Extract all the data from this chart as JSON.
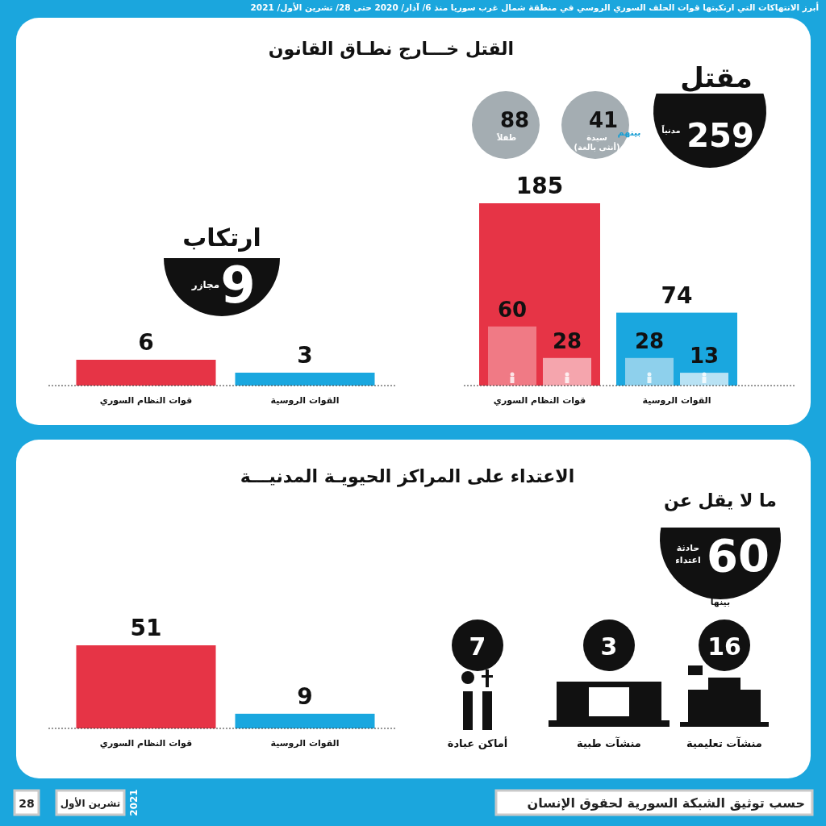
{
  "chart_data": [
    {
      "type": "other",
      "title": "أبرز الانتهاكات التي ارتكبتها قوات الحلف السوري الروسي في منطقة شمال غرب سوريا منذ 6/ آذار/ 2020 حتى 28/ تشرين الأول/ 2021",
      "annotations": [
        "حسب توثيق الشبكة السورية لحقوق الإنسان",
        "28",
        "تشرين الأول",
        "2021"
      ]
    },
    {
      "type": "bar",
      "title": "القتل خـــارج نطـاق القانون",
      "categories": [
        "قوات النظام السوري",
        "القوات الروسية"
      ],
      "data_labels": true,
      "series": [
        {
          "colors": [
            "#e63446",
            "#1aa7df"
          ],
          "values": [
            185,
            74
          ]
        },
        {
          "colors": [
            "#f07a85",
            "#8ed0ec"
          ],
          "values": [
            60,
            28
          ]
        },
        {
          "colors": [
            "#f5a5ad",
            "#b8e2f4"
          ],
          "values": [
            28,
            13
          ]
        }
      ],
      "annotations": [
        "مقتل",
        "259",
        "مدنياً",
        "بينهم",
        "41",
        "سيدة",
        "(أنثى بالغة)",
        "88",
        "طفلاً"
      ]
    },
    {
      "type": "bar",
      "categories": [
        "قوات النظام السوري",
        "القوات الروسية"
      ],
      "data_labels": true,
      "series": [
        {
          "colors": [
            "#e63446",
            "#1aa7df"
          ],
          "values": [
            6,
            3
          ]
        }
      ],
      "annotations": [
        "ارتكاب",
        "9",
        "مجازر"
      ]
    },
    {
      "type": "bar",
      "title": "الاعتداء على المراكز الحيويـة المدنيـــة",
      "categories": [
        "قوات النظام السوري",
        "القوات الروسية"
      ],
      "data_labels": true,
      "series": [
        {
          "colors": [
            "#e63446",
            "#1aa7df"
          ],
          "values": [
            51,
            9
          ]
        }
      ],
      "annotations": [
        "ما لا يقل عن",
        "60",
        "حادثة",
        "اعتداء",
        "بينها"
      ]
    },
    {
      "type": "other",
      "categories": [
        "منشآت تعليمية",
        "منشآت طبية",
        "أماكن عبادة"
      ],
      "values": [
        16,
        3,
        7
      ],
      "data_labels": true
    }
  ]
}
